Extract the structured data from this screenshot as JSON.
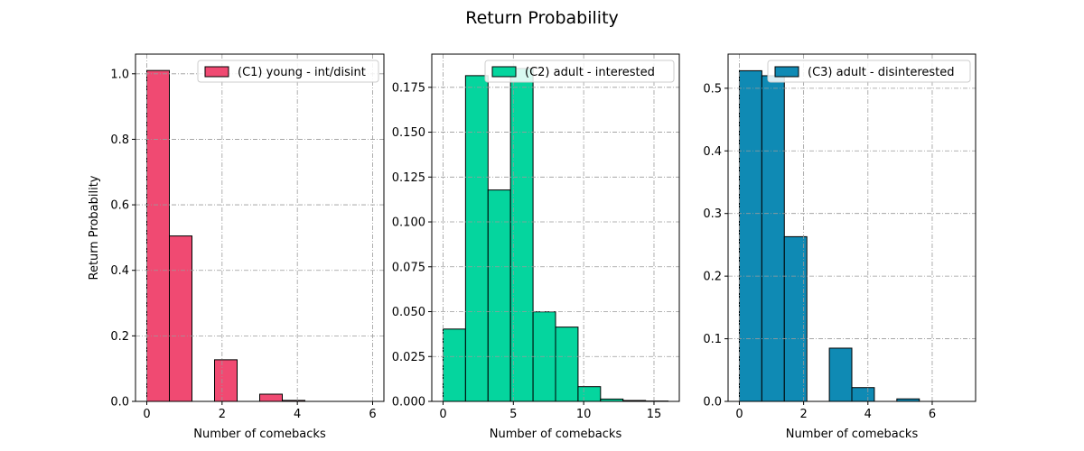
{
  "figure": {
    "title": "Return Probability"
  },
  "chart_data": [
    {
      "type": "bar",
      "legend": "(C1) young - int/disint",
      "legend_position": "top-right",
      "color": "#f04a72",
      "xlabel": "Number of comebacks",
      "ylabel": "Return Probability",
      "xlim": [
        -0.3,
        6.3
      ],
      "ylim": [
        0,
        1.06
      ],
      "xticks": [
        0,
        2,
        4,
        6
      ],
      "xtick_labels": [
        "0",
        "2",
        "4",
        "6"
      ],
      "yticks": [
        0,
        0.2,
        0.4,
        0.6,
        0.8,
        1.0
      ],
      "ytick_labels": [
        "0.0",
        "0.2",
        "0.4",
        "0.6",
        "0.8",
        "1.0"
      ],
      "grid": true,
      "bin_edges": [
        0,
        0.6,
        1.2,
        1.8,
        2.4,
        3.0,
        3.6,
        4.2,
        4.8,
        5.4,
        6.0
      ],
      "values": [
        1.01,
        0.505,
        0,
        0.127,
        0,
        0.022,
        0.003,
        0,
        0,
        0
      ]
    },
    {
      "type": "bar",
      "legend": "(C2) adult - interested",
      "legend_position": "top-right",
      "color": "#05d59e",
      "xlabel": "Number of comebacks",
      "ylabel": "",
      "xlim": [
        -0.8,
        16.8
      ],
      "ylim": [
        0,
        0.1935
      ],
      "xticks": [
        0,
        5,
        10,
        15
      ],
      "xtick_labels": [
        "0",
        "5",
        "10",
        "15"
      ],
      "yticks": [
        0,
        0.025,
        0.05,
        0.075,
        0.1,
        0.125,
        0.15,
        0.175
      ],
      "ytick_labels": [
        "0.000",
        "0.025",
        "0.050",
        "0.075",
        "0.100",
        "0.125",
        "0.150",
        "0.175"
      ],
      "grid": true,
      "bin_edges": [
        0,
        1.6,
        3.2,
        4.8,
        6.4,
        8.0,
        9.6,
        11.2,
        12.8,
        14.4,
        16.0
      ],
      "values": [
        0.0403,
        0.1815,
        0.1178,
        0.1855,
        0.0499,
        0.0414,
        0.0082,
        0.0013,
        0.0005,
        0.0002
      ]
    },
    {
      "type": "bar",
      "legend": "(C3) adult - disinterested",
      "legend_position": "top-right",
      "color": "#0f8ab4",
      "xlabel": "Number of comebacks",
      "ylabel": "",
      "xlim": [
        -0.35,
        7.35
      ],
      "ylim": [
        0,
        0.5545
      ],
      "xticks": [
        0,
        2,
        4,
        6
      ],
      "xtick_labels": [
        "0",
        "2",
        "4",
        "6"
      ],
      "yticks": [
        0,
        0.1,
        0.2,
        0.3,
        0.4,
        0.5
      ],
      "ytick_labels": [
        "0.0",
        "0.1",
        "0.2",
        "0.3",
        "0.4",
        "0.5"
      ],
      "grid": true,
      "bin_edges": [
        0,
        0.7,
        1.4,
        2.1,
        2.8,
        3.5,
        4.2,
        4.9,
        5.6,
        6.3,
        7.0
      ],
      "values": [
        0.528,
        0.52,
        0.263,
        0,
        0.085,
        0.022,
        0,
        0.004,
        0,
        0
      ]
    }
  ]
}
